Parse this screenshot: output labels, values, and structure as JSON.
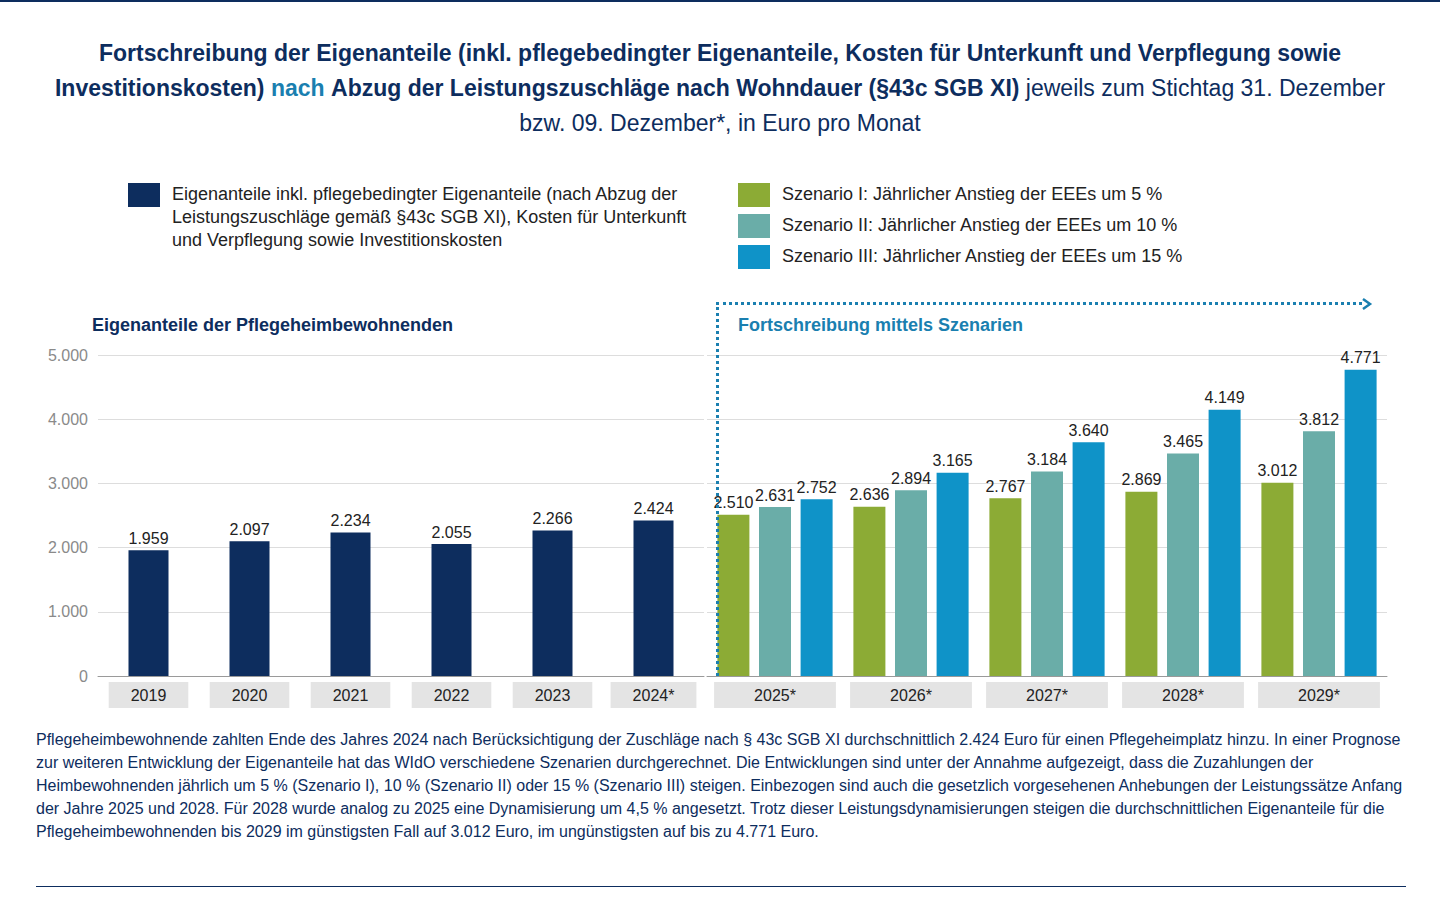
{
  "chart_data": {
    "type": "bar",
    "title": [
      "Fortschreibung der Eigenanteile (inkl. pflegebedingter Eigenanteile, Kosten für Unterkunft und Verpflegung sowie Investitionskosten)",
      "nach",
      "Abzug der Leistungszuschläge nach Wohndauer (§43c SGB XI)"
    ],
    "subtitle": "jeweils zum Stichtag 31. Dezember bzw. 09. Dezember*, in Euro pro Monat",
    "annotations": [
      "Eigenanteile der Pflegeheimbewohnenden",
      "Fortschreibung mittels Szenarien"
    ],
    "caption": "Pflegeheimbewohnende zahlten Ende des Jahres 2024 nach Berücksichtigung der Zuschläge nach § 43c SGB XI durchschnittlich 2.424 Euro für einen Pflegeheimplatz hinzu. In einer Prognose zur weiteren Entwicklung der Eigenanteile hat das WIdO verschiedene Szenarien durchgerechnet. Die Entwicklungen sind unter der Annahme aufgezeigt, dass die Zuzahlungen der Heimbewohnenden jährlich um 5 % (Szenario I), 10 % (Szenario II) oder 15 % (Szenario III) steigen. Einbezogen sind auch die gesetzlich vorgesehenen Anhebungen der Leistungssätze Anfang der Jahre 2025 und 2028. Für 2028 wurde analog zu 2025 eine Dynamisierung um 4,5 % angesetzt. Trotz dieser Leistungsdynamisierungen steigen die durchschnittlichen Eigenanteile für die Pflegeheimbewohnenden bis 2029 im günstigsten Fall auf 3.012 Euro, im ungünstigsten auf bis zu 4.771 Euro.",
    "categories": [
      "2019",
      "2020",
      "2021",
      "2022",
      "2023",
      "2024*",
      "2025*",
      "2026*",
      "2027*",
      "2028*",
      "2029*"
    ],
    "series": [
      {
        "name": "Eigenanteile inkl. pflegebedingter Eigenanteile (nach Abzug der Leistungszuschläge gemäß §43c SGB XI), Kosten für Unterkunft und Verpflegung sowie Investitionskosten",
        "color": "#0d2d5e",
        "values": [
          1959,
          2097,
          2234,
          2055,
          2266,
          2424,
          null,
          null,
          null,
          null,
          null
        ],
        "value_labels": [
          "1.959",
          "2.097",
          "2.234",
          "2.055",
          "2.266",
          "2.424",
          null,
          null,
          null,
          null,
          null
        ]
      },
      {
        "name": "Szenario I: Jährlicher Anstieg der EEEs um 5 %",
        "color": "#8cab35",
        "values": [
          null,
          null,
          null,
          null,
          null,
          null,
          2510,
          2636,
          2767,
          2869,
          3012
        ],
        "value_labels": [
          null,
          null,
          null,
          null,
          null,
          null,
          "2.510",
          "2.636",
          "2.767",
          "2.869",
          "3.012"
        ]
      },
      {
        "name": "Szenario II: Jährlicher Anstieg der EEEs um 10 %",
        "color": "#6aada8",
        "values": [
          null,
          null,
          null,
          null,
          null,
          null,
          2631,
          2894,
          3184,
          3465,
          3812
        ],
        "value_labels": [
          null,
          null,
          null,
          null,
          null,
          null,
          "2.631",
          "2.894",
          "3.184",
          "3.465",
          "3.812"
        ]
      },
      {
        "name": "Szenario III: Jährlicher Anstieg der EEEs um 15 %",
        "color": "#0f93c8",
        "values": [
          null,
          null,
          null,
          null,
          null,
          null,
          2752,
          3165,
          3640,
          4149,
          4771
        ],
        "value_labels": [
          null,
          null,
          null,
          null,
          null,
          null,
          "2.752",
          "3.165",
          "3.640",
          "4.149",
          "4.771"
        ]
      }
    ],
    "ylim": [
      0,
      5000
    ],
    "yticks": [
      0,
      {
        "value": 1000,
        "label": "1.000"
      },
      {
        "value": 2000,
        "label": "2.000"
      },
      {
        "value": 3000,
        "label": "3.000"
      },
      {
        "value": 4000,
        "label": "4.000"
      },
      {
        "value": 5000,
        "label": "5.000"
      }
    ],
    "grid": true,
    "data_labels": true
  }
}
